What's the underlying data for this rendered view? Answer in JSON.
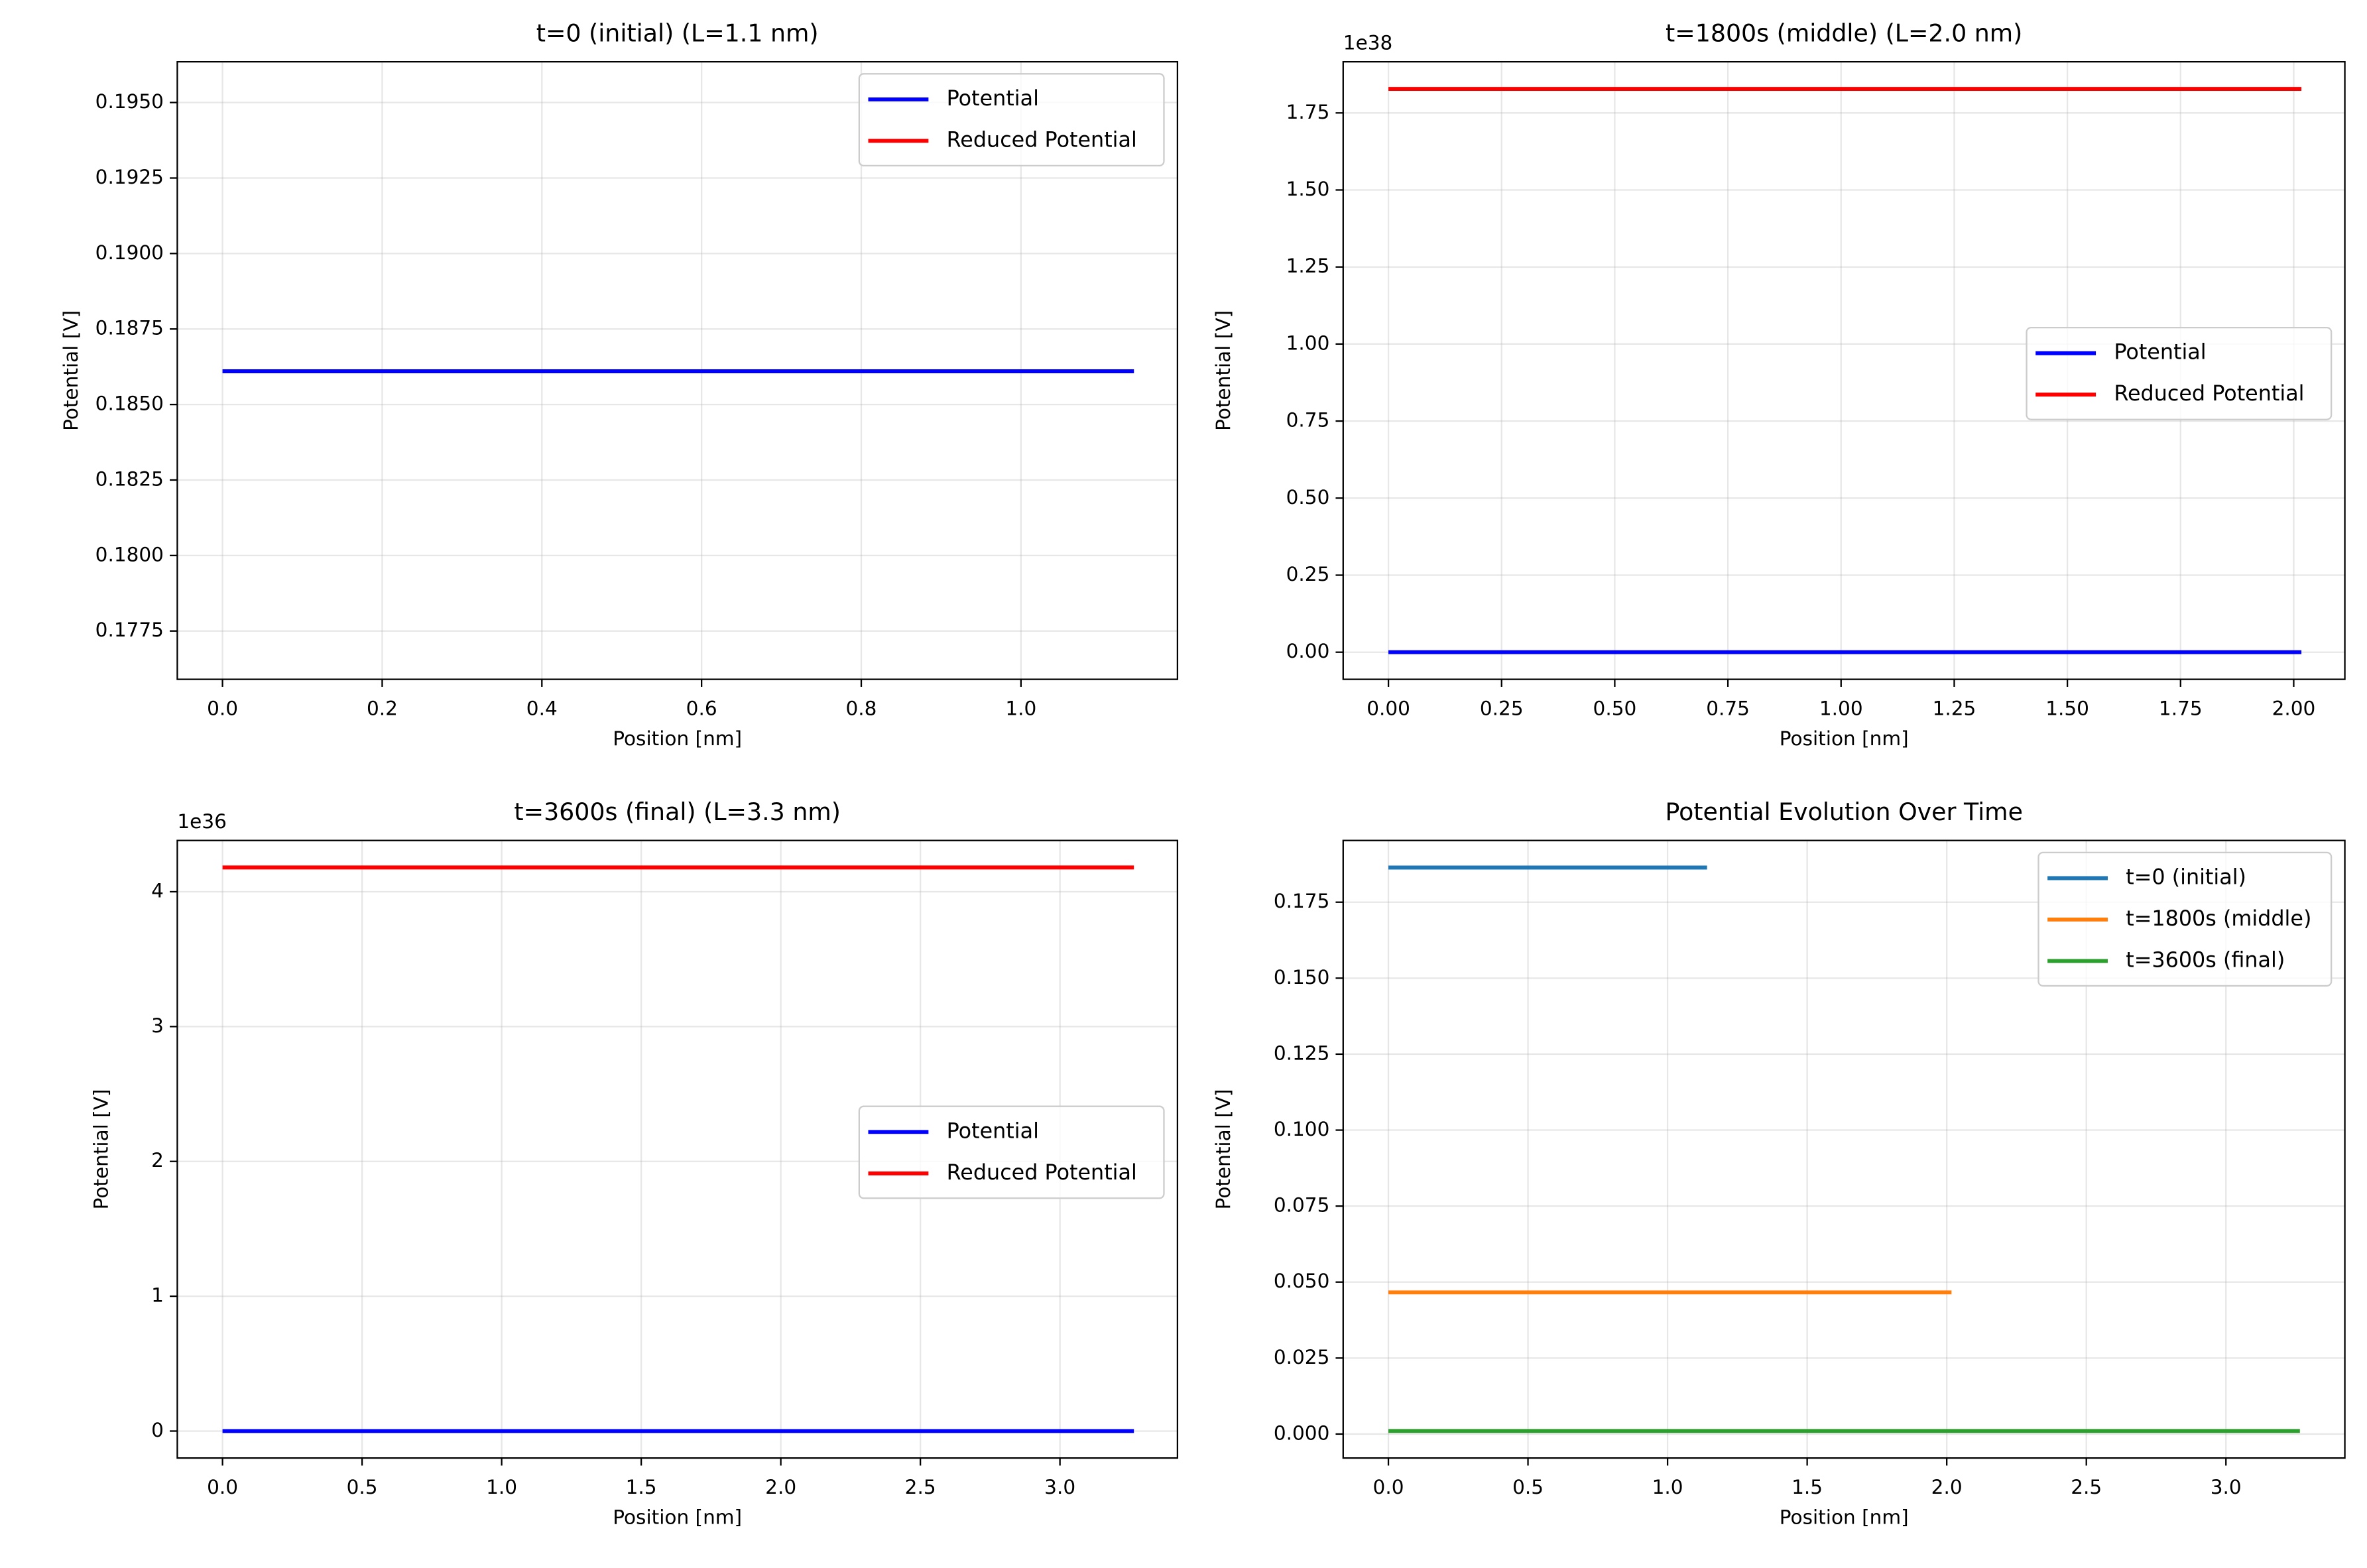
{
  "chart_data": [
    {
      "type": "line",
      "title": "t=0 (initial) (L=1.1 nm)",
      "xlabel": "Position [nm]",
      "ylabel": "Potential [V]",
      "xlim": [
        -0.0566,
        1.196
      ],
      "ylim": [
        0.1759,
        0.19635
      ],
      "xticks": [
        {
          "value": 0,
          "label": "0.0"
        },
        0.2,
        0.4,
        0.6,
        0.8,
        {
          "value": 1,
          "label": "1.0"
        }
      ],
      "yticks": [
        0.1775,
        {
          "value": 0.18,
          "label": "0.1800"
        },
        0.1825,
        {
          "value": 0.185,
          "label": "0.1850"
        },
        0.1875,
        {
          "value": 0.19,
          "label": "0.1900"
        },
        0.1925,
        {
          "value": 0.195,
          "label": "0.1950"
        }
      ],
      "grid": true,
      "legend": "upper right",
      "series": [
        {
          "name": "Potential",
          "color": "#0000ff",
          "x": [
            0,
            1.1415
          ],
          "values": [
            0.1861,
            0.1861
          ]
        },
        {
          "name": "Reduced Potential",
          "color": "#ff0000",
          "x": [
            0,
            1.1415
          ],
          "values": [
            null,
            null
          ]
        }
      ]
    },
    {
      "type": "line",
      "title": "t=1800s (middle) (L=2.0 nm)",
      "xlabel": "Position [nm]",
      "ylabel": "Potential [V]",
      "offset_text": "1e38",
      "xlim": [
        -0.1,
        2.113
      ],
      "ylim": [
        -8.8e+36,
        1.916e+38
      ],
      "xticks": [
        {
          "value": 0,
          "label": "0.00"
        },
        0.25,
        {
          "value": 0.5,
          "label": "0.50"
        },
        0.75,
        {
          "value": 1,
          "label": "1.00"
        },
        1.25,
        {
          "value": 1.5,
          "label": "1.50"
        },
        1.75,
        {
          "value": 2,
          "label": "2.00"
        }
      ],
      "yticks": [
        {
          "value": 0,
          "label": "0.00"
        },
        {
          "value": 2.5e+37,
          "label": "0.25"
        },
        {
          "value": 5e+37,
          "label": "0.50"
        },
        {
          "value": 7.5e+37,
          "label": "0.75"
        },
        {
          "value": 1e+38,
          "label": "1.00"
        },
        {
          "value": 1.25e+38,
          "label": "1.25"
        },
        {
          "value": 1.5e+38,
          "label": "1.50"
        },
        {
          "value": 1.75e+38,
          "label": "1.75"
        }
      ],
      "grid": true,
      "legend": "center right",
      "series": [
        {
          "name": "Potential",
          "color": "#0000ff",
          "x": [
            0,
            2.017
          ],
          "values": [
            0.046,
            0.046
          ]
        },
        {
          "name": "Reduced Potential",
          "color": "#ff0000",
          "x": [
            0,
            2.017
          ],
          "values": [
            1.828e+38,
            1.828e+38
          ]
        }
      ]
    },
    {
      "type": "line",
      "title": "t=3600s (final) (L=3.3 nm)",
      "xlabel": "Position [nm]",
      "ylabel": "Potential [V]",
      "offset_text": "1e36",
      "xlim": [
        -0.162,
        3.421
      ],
      "ylim": [
        -2e+35,
        4.38e+36
      ],
      "xticks": [
        {
          "value": 0,
          "label": "0.0"
        },
        0.5,
        {
          "value": 1,
          "label": "1.0"
        },
        1.5,
        {
          "value": 2,
          "label": "2.0"
        },
        2.5,
        {
          "value": 3,
          "label": "3.0"
        }
      ],
      "yticks": [
        {
          "value": 0,
          "label": "0"
        },
        {
          "value": 1e+36,
          "label": "1"
        },
        {
          "value": 2e+36,
          "label": "2"
        },
        {
          "value": 3e+36,
          "label": "3"
        },
        {
          "value": 4e+36,
          "label": "4"
        }
      ],
      "grid": true,
      "legend": "center right",
      "series": [
        {
          "name": "Potential",
          "color": "#0000ff",
          "x": [
            0,
            3.265
          ],
          "values": [
            0.001,
            0.001
          ]
        },
        {
          "name": "Reduced Potential",
          "color": "#ff0000",
          "x": [
            0,
            3.265
          ],
          "values": [
            4.18e+36,
            4.18e+36
          ]
        }
      ]
    },
    {
      "type": "line",
      "title": "Potential Evolution Over Time",
      "xlabel": "Position [nm]",
      "ylabel": "Potential [V]",
      "xlim": [
        -0.162,
        3.426
      ],
      "ylim": [
        -0.0079,
        0.1953
      ],
      "xticks": [
        {
          "value": 0,
          "label": "0.0"
        },
        0.5,
        {
          "value": 1,
          "label": "1.0"
        },
        1.5,
        {
          "value": 2,
          "label": "2.0"
        },
        2.5,
        {
          "value": 3,
          "label": "3.0"
        }
      ],
      "yticks": [
        {
          "value": 0,
          "label": "0.000"
        },
        0.025,
        {
          "value": 0.05,
          "label": "0.050"
        },
        0.075,
        {
          "value": 0.1,
          "label": "0.100"
        },
        0.125,
        {
          "value": 0.15,
          "label": "0.150"
        },
        0.175
      ],
      "grid": true,
      "legend": "upper right",
      "series": [
        {
          "name": "t=0 (initial)",
          "color": "#1f77b4",
          "x": [
            0,
            1.1415
          ],
          "values": [
            0.1864,
            0.1864
          ]
        },
        {
          "name": "t=1800s (middle)",
          "color": "#ff7f0e",
          "x": [
            0,
            2.017
          ],
          "values": [
            0.0466,
            0.0466
          ]
        },
        {
          "name": "t=3600s (final)",
          "color": "#2ca02c",
          "x": [
            0,
            3.265
          ],
          "values": [
            0.001,
            0.001
          ]
        }
      ]
    }
  ]
}
